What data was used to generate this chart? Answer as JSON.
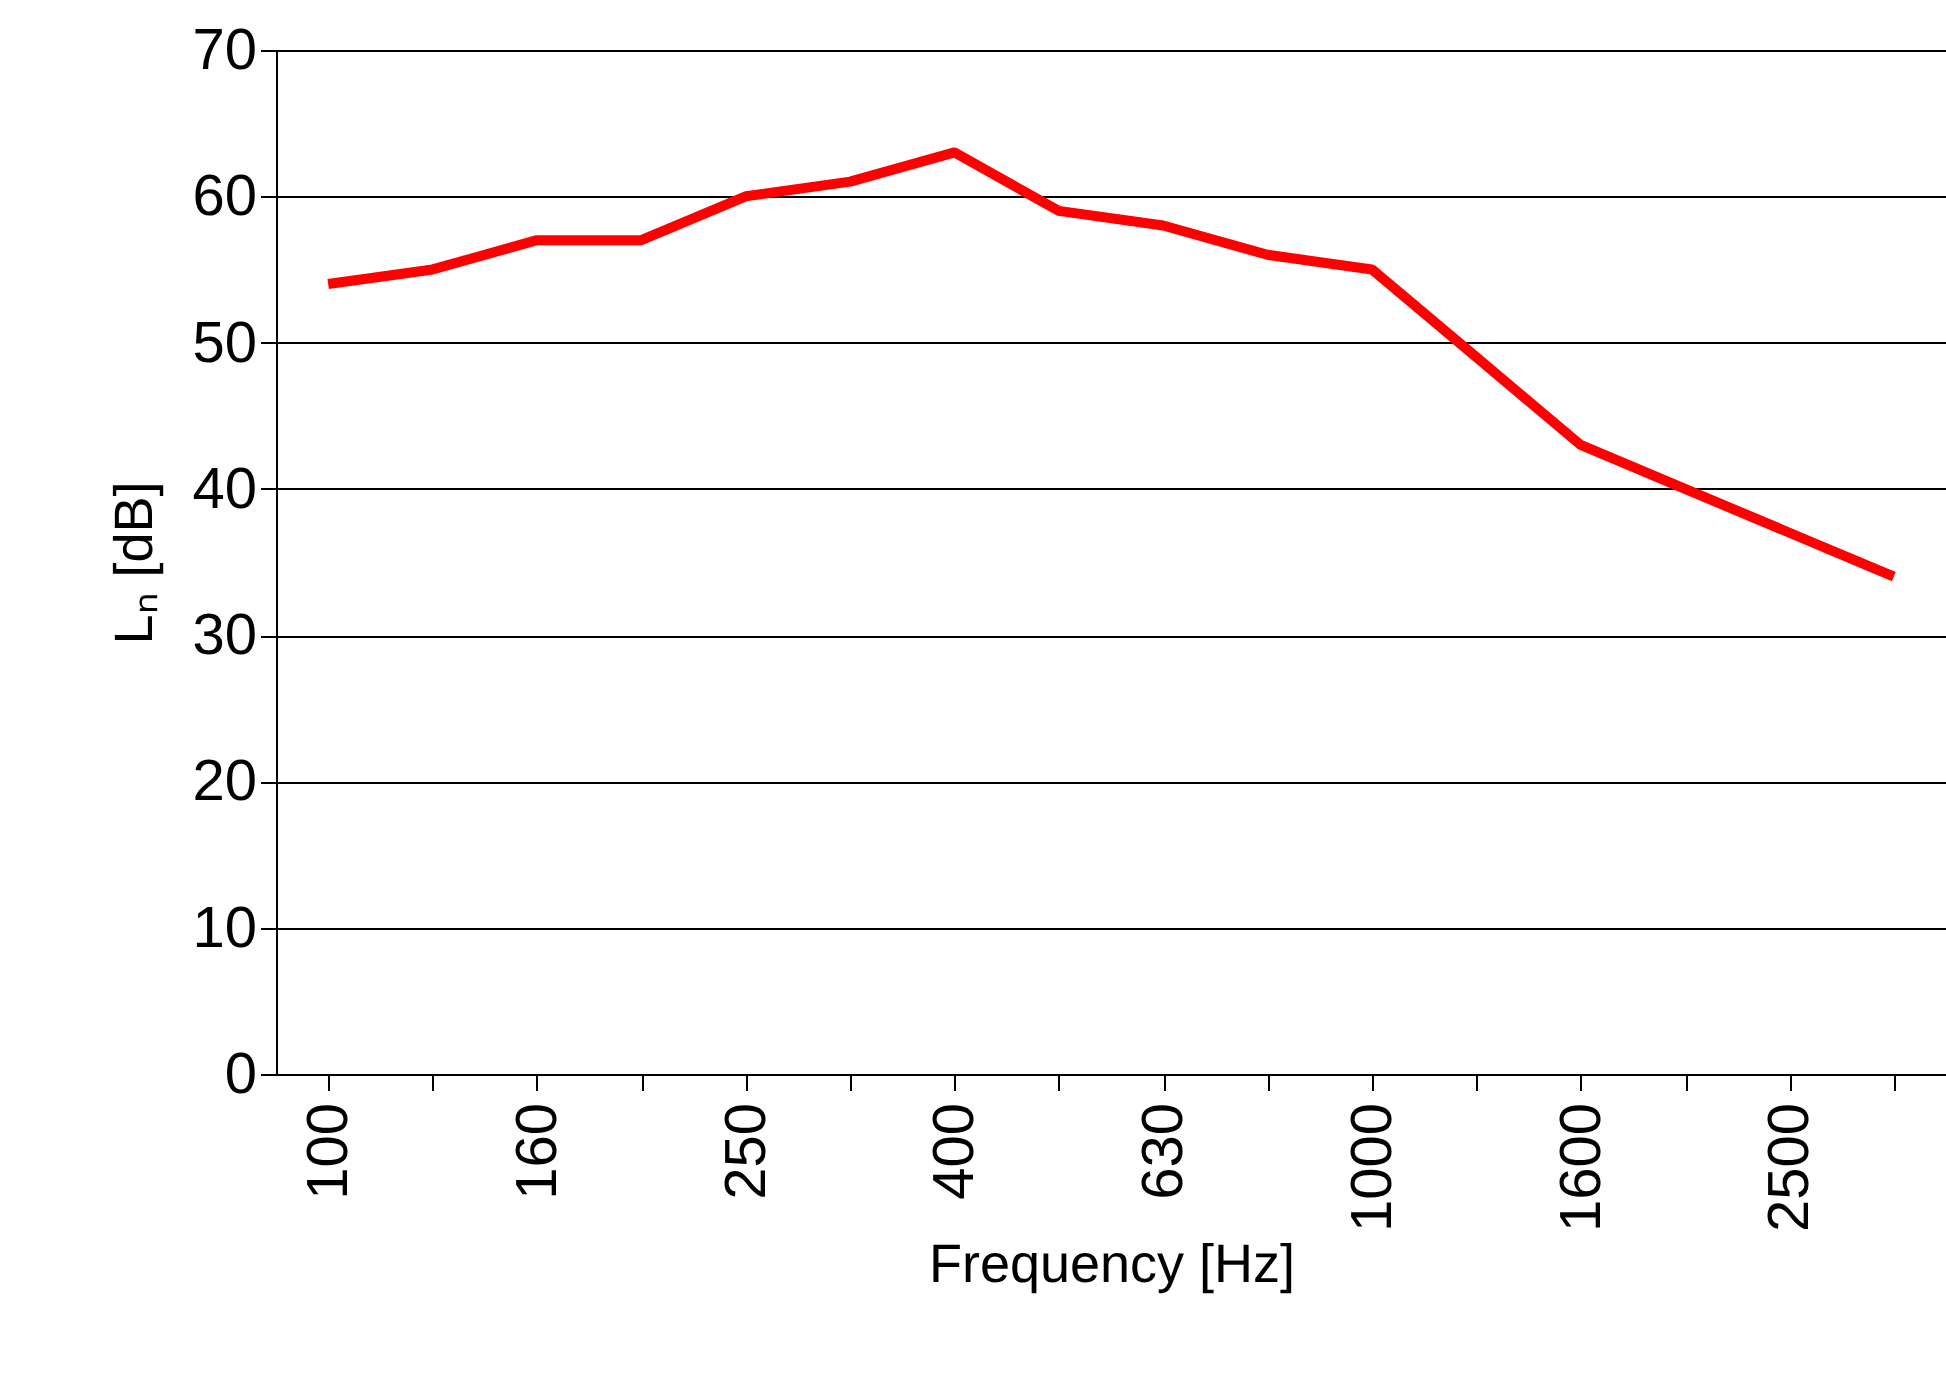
{
  "chart_data": {
    "type": "line",
    "xlabel": "Frequency [Hz]",
    "ylabel": "Lₙ [dB]",
    "categories": [
      "100",
      null,
      "160",
      null,
      "250",
      null,
      "400",
      null,
      "630",
      null,
      "1000",
      null,
      "1600",
      null,
      "2500",
      null
    ],
    "series": [
      {
        "color": "#ff0000",
        "values": [
          54,
          55,
          57,
          57,
          60,
          61,
          63,
          59,
          58,
          56,
          55,
          49,
          43,
          40,
          37,
          34
        ]
      }
    ],
    "ylim": [
      0,
      70
    ],
    "yticks": [
      0,
      10,
      20,
      30,
      40,
      50,
      60,
      70
    ],
    "grid": "y",
    "marker": "none",
    "line_style": "solid"
  }
}
